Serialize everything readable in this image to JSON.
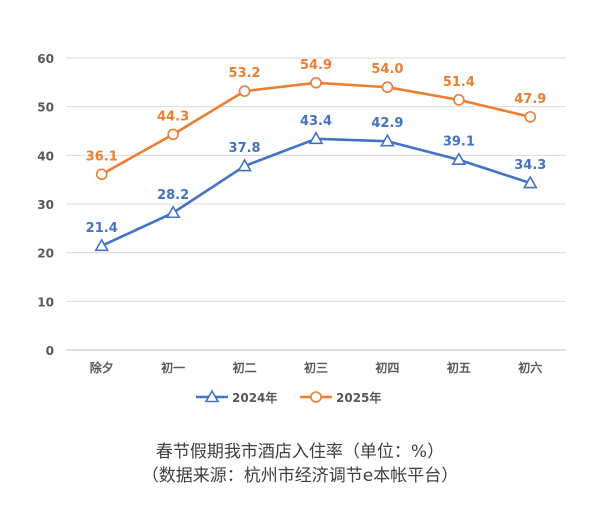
{
  "caption": {
    "title": "春节假期我市酒店入住率（单位：%）",
    "source": "（数据来源：杭州市经济调节e本帐平台）"
  },
  "colors": {
    "series_2024": "#4472C4",
    "series_2025": "#ED7D31",
    "axis_text": "#595959",
    "grid": "#D9D9D9",
    "background": "#FFFFFF"
  },
  "chart_data": {
    "type": "line",
    "categories": [
      "除夕",
      "初一",
      "初二",
      "初三",
      "初四",
      "初五",
      "初六"
    ],
    "series": [
      {
        "name": "2024年",
        "values": [
          21.4,
          28.2,
          37.8,
          43.4,
          42.9,
          39.1,
          34.3
        ],
        "labels": [
          "21.4",
          "28.2",
          "37.8",
          "43.4",
          "42.9",
          "39.1",
          "34.3"
        ],
        "color": "#4472C4",
        "marker": "triangle"
      },
      {
        "name": "2025年",
        "values": [
          36.1,
          44.3,
          53.2,
          54.9,
          54.0,
          51.4,
          47.9
        ],
        "labels": [
          "36.1",
          "44.3",
          "53.2",
          "54.9",
          "54.0",
          "51.4",
          "47.9"
        ],
        "color": "#ED7D31",
        "marker": "circle"
      }
    ],
    "y_ticks": [
      "0",
      "10",
      "20",
      "30",
      "40",
      "50",
      "60"
    ],
    "ylim": [
      0,
      60
    ],
    "grid": true,
    "legend_position": "bottom",
    "title": "",
    "xlabel": "",
    "ylabel": ""
  }
}
